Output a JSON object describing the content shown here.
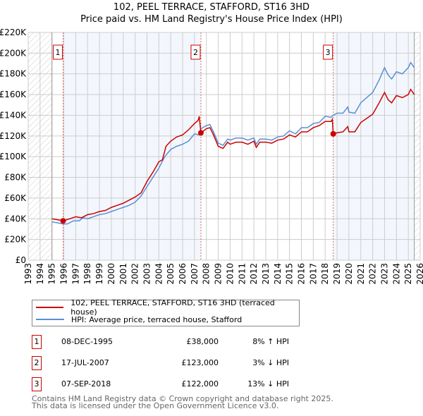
{
  "chart_data": {
    "type": "line",
    "title": "102, PEEL TERRACE, STAFFORD, ST16 3HD",
    "subtitle": "Price paid vs. HM Land Registry's House Price Index (HPI)",
    "xlim": [
      1993,
      2026
    ],
    "ylim": [
      0,
      220000
    ],
    "yticks": [
      "£0",
      "£20K",
      "£40K",
      "£60K",
      "£80K",
      "£100K",
      "£120K",
      "£140K",
      "£160K",
      "£180K",
      "£200K",
      "£220K"
    ],
    "xticks": [
      "1993",
      "1994",
      "1995",
      "1996",
      "1997",
      "1998",
      "1999",
      "2000",
      "2001",
      "2002",
      "2003",
      "2004",
      "2005",
      "2006",
      "2007",
      "2008",
      "2009",
      "2010",
      "2011",
      "2012",
      "2013",
      "2014",
      "2015",
      "2016",
      "2017",
      "2018",
      "2019",
      "2020",
      "2021",
      "2022",
      "2023",
      "2024",
      "2025",
      "2026"
    ],
    "grid": true,
    "data_range": [
      1995,
      2025.5
    ],
    "series": [
      {
        "name": "102, PEEL TERRACE, STAFFORD, ST16 3HD (terraced house)",
        "color": "#cc0000",
        "points": [
          [
            1995,
            40
          ],
          [
            1995.5,
            39
          ],
          [
            1995.94,
            38
          ],
          [
            1996.5,
            40
          ],
          [
            1997,
            42
          ],
          [
            1997.5,
            41
          ],
          [
            1998,
            44
          ],
          [
            1998.5,
            45
          ],
          [
            1999,
            47
          ],
          [
            1999.5,
            48
          ],
          [
            2000,
            51
          ],
          [
            2000.5,
            53
          ],
          [
            2001,
            55
          ],
          [
            2001.5,
            58
          ],
          [
            2002,
            61
          ],
          [
            2002.5,
            65
          ],
          [
            2003,
            76
          ],
          [
            2003.5,
            85
          ],
          [
            2004,
            95
          ],
          [
            2004.3,
            97
          ],
          [
            2004.6,
            110
          ],
          [
            2005,
            115
          ],
          [
            2005.5,
            119
          ],
          [
            2006,
            121
          ],
          [
            2006.5,
            126
          ],
          [
            2007,
            132
          ],
          [
            2007.3,
            135
          ],
          [
            2007.4,
            139
          ],
          [
            2007.54,
            123
          ],
          [
            2008,
            127
          ],
          [
            2008.3,
            128
          ],
          [
            2008.6,
            121
          ],
          [
            2009,
            110
          ],
          [
            2009.4,
            108
          ],
          [
            2009.8,
            114
          ],
          [
            2010,
            112
          ],
          [
            2010.5,
            114
          ],
          [
            2011,
            114
          ],
          [
            2011.5,
            112
          ],
          [
            2012,
            115
          ],
          [
            2012.2,
            109
          ],
          [
            2012.5,
            114
          ],
          [
            2013,
            114
          ],
          [
            2013.5,
            113
          ],
          [
            2014,
            116
          ],
          [
            2014.5,
            117
          ],
          [
            2015,
            121
          ],
          [
            2015.5,
            119
          ],
          [
            2016,
            124
          ],
          [
            2016.5,
            124
          ],
          [
            2017,
            128
          ],
          [
            2017.5,
            130
          ],
          [
            2018,
            134
          ],
          [
            2018.5,
            134
          ],
          [
            2018.6,
            136
          ],
          [
            2018.68,
            122
          ],
          [
            2019,
            123
          ],
          [
            2019.5,
            124
          ],
          [
            2019.9,
            129
          ],
          [
            2020,
            124
          ],
          [
            2020.5,
            124
          ],
          [
            2021,
            133
          ],
          [
            2021.5,
            137
          ],
          [
            2022,
            141
          ],
          [
            2022.5,
            151
          ],
          [
            2023,
            162
          ],
          [
            2023.3,
            155
          ],
          [
            2023.6,
            152
          ],
          [
            2024,
            159
          ],
          [
            2024.5,
            157
          ],
          [
            2025,
            160
          ],
          [
            2025.2,
            165
          ],
          [
            2025.5,
            160
          ]
        ]
      },
      {
        "name": "HPI: Average price, terraced house, Stafford",
        "color": "#5b8fd4",
        "points": [
          [
            1995,
            37
          ],
          [
            1995.5,
            36
          ],
          [
            1995.94,
            35
          ],
          [
            1996.3,
            35
          ],
          [
            1996.8,
            38
          ],
          [
            1997.3,
            38
          ],
          [
            1997.6,
            41
          ],
          [
            1998,
            40
          ],
          [
            1998.5,
            42
          ],
          [
            1999,
            44
          ],
          [
            1999.5,
            45
          ],
          [
            2000,
            47
          ],
          [
            2000.5,
            49
          ],
          [
            2001,
            51
          ],
          [
            2001.5,
            53
          ],
          [
            2002,
            56
          ],
          [
            2002.5,
            62
          ],
          [
            2003,
            71
          ],
          [
            2003.5,
            80
          ],
          [
            2004,
            89
          ],
          [
            2004.5,
            100
          ],
          [
            2005,
            107
          ],
          [
            2005.5,
            110
          ],
          [
            2006,
            112
          ],
          [
            2006.5,
            115
          ],
          [
            2007,
            122
          ],
          [
            2007.4,
            121
          ],
          [
            2007.54,
            127
          ],
          [
            2008,
            130
          ],
          [
            2008.3,
            131
          ],
          [
            2008.6,
            124
          ],
          [
            2009,
            113
          ],
          [
            2009.4,
            111
          ],
          [
            2009.8,
            117
          ],
          [
            2010,
            116
          ],
          [
            2010.5,
            118
          ],
          [
            2011,
            118
          ],
          [
            2011.5,
            116
          ],
          [
            2012,
            118
          ],
          [
            2012.2,
            112
          ],
          [
            2012.5,
            117
          ],
          [
            2013,
            117
          ],
          [
            2013.5,
            116
          ],
          [
            2014,
            119
          ],
          [
            2014.5,
            120
          ],
          [
            2015,
            125
          ],
          [
            2015.5,
            122
          ],
          [
            2016,
            128
          ],
          [
            2016.5,
            128
          ],
          [
            2017,
            132
          ],
          [
            2017.5,
            133
          ],
          [
            2018,
            139
          ],
          [
            2018.5,
            138
          ],
          [
            2018.68,
            140
          ],
          [
            2019,
            142
          ],
          [
            2019.5,
            142
          ],
          [
            2019.9,
            148
          ],
          [
            2020,
            143
          ],
          [
            2020.5,
            142
          ],
          [
            2021,
            152
          ],
          [
            2021.5,
            157
          ],
          [
            2022,
            162
          ],
          [
            2022.5,
            173
          ],
          [
            2023,
            186
          ],
          [
            2023.3,
            179
          ],
          [
            2023.6,
            175
          ],
          [
            2024,
            182
          ],
          [
            2024.5,
            180
          ],
          [
            2025,
            186
          ],
          [
            2025.2,
            191
          ],
          [
            2025.5,
            186
          ]
        ]
      }
    ],
    "sales": [
      {
        "id": "1",
        "x": 1995.94,
        "y": 38
      },
      {
        "id": "2",
        "x": 2007.54,
        "y": 123
      },
      {
        "id": "3",
        "x": 2018.68,
        "y": 122
      }
    ]
  },
  "legend": {
    "property": "102, PEEL TERRACE, STAFFORD, ST16 3HD (terraced house)",
    "hpi": "HPI: Average price, terraced house, Stafford"
  },
  "transactions": [
    {
      "id": "1",
      "date": "08-DEC-1995",
      "price": "£38,000",
      "hpi": "8% ↑ HPI"
    },
    {
      "id": "2",
      "date": "17-JUL-2007",
      "price": "£123,000",
      "hpi": "3% ↓ HPI"
    },
    {
      "id": "3",
      "date": "07-SEP-2018",
      "price": "£122,000",
      "hpi": "13% ↓ HPI"
    }
  ],
  "footer": {
    "line1": "Contains HM Land Registry data © Crown copyright and database right 2025.",
    "line2": "This data is licensed under the Open Government Licence v3.0."
  }
}
